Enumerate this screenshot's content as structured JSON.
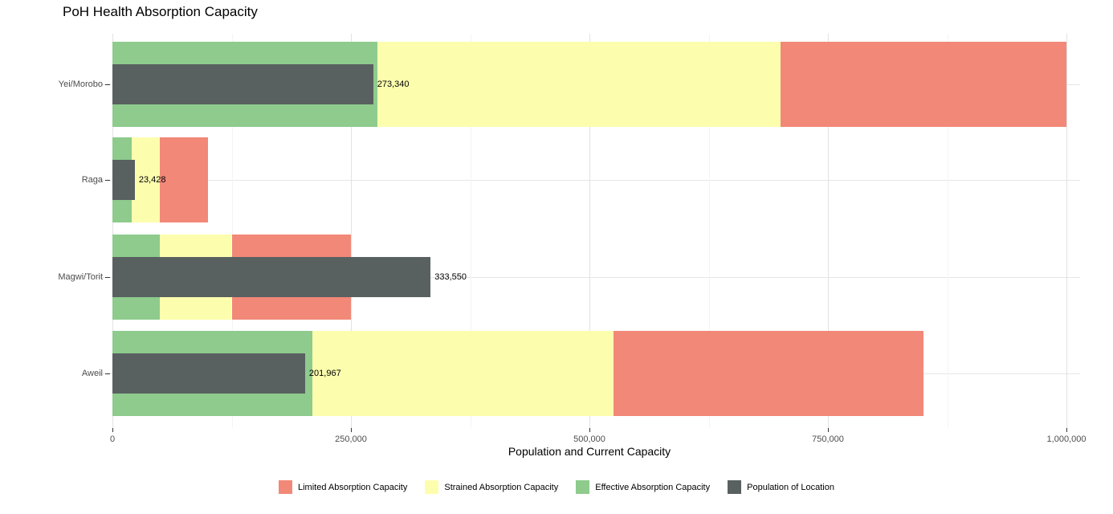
{
  "title": "PoH Health Absorption Capacity",
  "chart_data": {
    "type": "bar",
    "orientation": "horizontal",
    "stacked": true,
    "title": "PoH Health Absorption Capacity",
    "xlabel": "Population and Current Capacity",
    "ylabel": "",
    "xlim": [
      0,
      1000000
    ],
    "x_ticks": [
      0,
      250000,
      500000,
      750000,
      1000000
    ],
    "x_tick_labels": [
      "0",
      "250,000",
      "500,000",
      "750,000",
      "1,000,000"
    ],
    "x_minor_ticks": [
      125000,
      375000,
      625000,
      875000
    ],
    "grid": true,
    "legend_position": "bottom",
    "categories": [
      "Yei/Morobo",
      "Raga",
      "Magwi/Torit",
      "Aweil"
    ],
    "series": [
      {
        "name": "Effective Absorption Capacity",
        "color": "#8ECB8D",
        "values": [
          278000,
          20000,
          50000,
          210000
        ]
      },
      {
        "name": "Strained Absorption Capacity",
        "color": "#FCFEAE",
        "values": [
          422000,
          30000,
          75000,
          315000
        ]
      },
      {
        "name": "Limited Absorption Capacity",
        "color": "#F28878",
        "values": [
          300000,
          50000,
          125000,
          325000
        ]
      }
    ],
    "population_series": {
      "name": "Population of Location",
      "color": "#596060",
      "values": [
        273340,
        23428,
        333550,
        201967
      ],
      "labels": [
        "273,340",
        "23,428",
        "333,550",
        "201,967"
      ]
    },
    "legend": [
      {
        "label": "Limited Absorption Capacity",
        "color": "#F28878"
      },
      {
        "label": "Strained Absorption Capacity",
        "color": "#FCFEAE"
      },
      {
        "label": "Effective Absorption Capacity",
        "color": "#8ECB8D"
      },
      {
        "label": "Population of Location",
        "color": "#596060"
      }
    ]
  }
}
